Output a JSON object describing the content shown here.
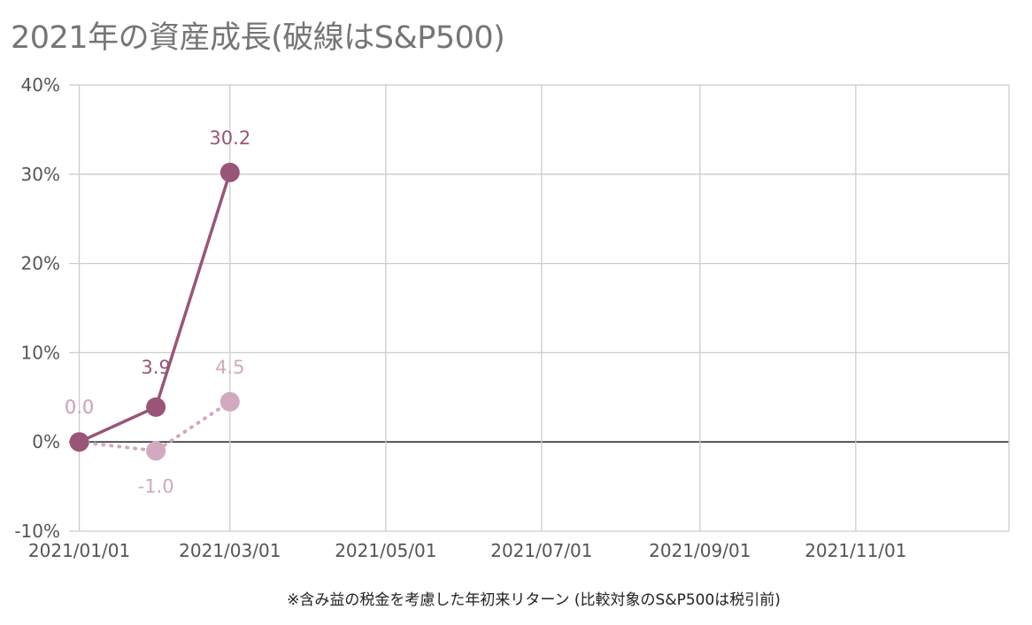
{
  "chart_data": {
    "type": "line",
    "title": "2021年の資産成長(破線はS&P500)",
    "xlabel": "※含み益の税金を考慮した年初来リターン (比較対象のS&P500は税引前)",
    "ylabel": "",
    "x_range": [
      "2020-12-28",
      "2021-12-31"
    ],
    "ylim": [
      -10,
      40
    ],
    "y_ticks": [
      -10,
      0,
      10,
      20,
      30,
      40
    ],
    "y_tick_labels": [
      "-10%",
      "0%",
      "10%",
      "20%",
      "30%",
      "40%"
    ],
    "x_ticks": [
      "2021-01-01",
      "2021-03-01",
      "2021-05-01",
      "2021-07-01",
      "2021-09-01",
      "2021-11-01"
    ],
    "x_tick_labels": [
      "2021/01/01",
      "2021/03/01",
      "2021/05/01",
      "2021/07/01",
      "2021/09/01",
      "2021/11/01"
    ],
    "grid": true,
    "series": [
      {
        "name": "",
        "style": "solid",
        "color": "#995577",
        "x": [
          "2021-01-01",
          "2021-01-31",
          "2021-03-01"
        ],
        "values": [
          0.0,
          3.9,
          30.2
        ],
        "labels": [
          "0.0",
          "3.9",
          "30.2"
        ]
      },
      {
        "name": "S&P500",
        "style": "dotted",
        "color": "#d1a9c0",
        "x": [
          "2021-01-01",
          "2021-01-31",
          "2021-03-01"
        ],
        "values": [
          0.0,
          -1.0,
          4.5
        ],
        "labels": [
          "0.0",
          "-1.0",
          "4.5"
        ]
      }
    ]
  }
}
